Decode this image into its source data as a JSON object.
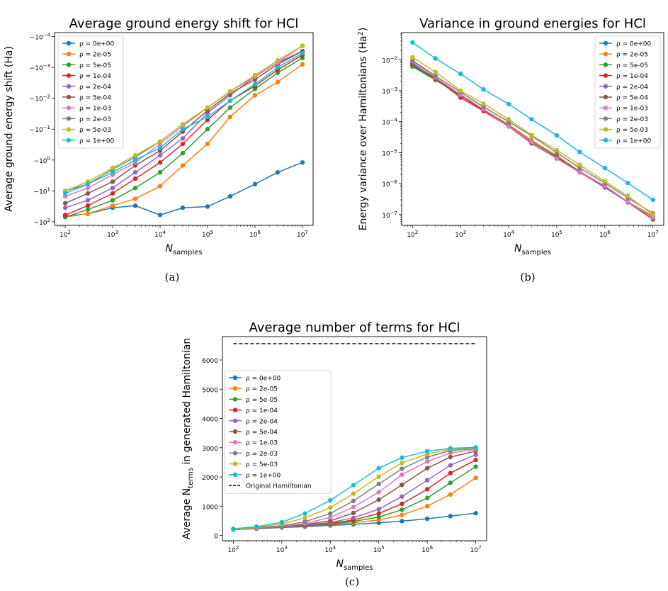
{
  "colors": {
    "p0": "#1f77b4",
    "p1": "#ff7f0e",
    "p2": "#2ca02c",
    "p3": "#d62728",
    "p4": "#9467bd",
    "p5": "#8c564b",
    "p6": "#e377c2",
    "p7": "#7f7f7f",
    "p8": "#bcbd22",
    "p9": "#17becf"
  },
  "chart_data": [
    {
      "type": "line",
      "title": "Average ground energy shift for HCl",
      "xlabel": "N",
      "xlabel_sub": "samples",
      "ylabel": "Average ground energy shift (Ha)",
      "xscale": "log",
      "yscale": "symlog",
      "xlim": [
        100,
        10000000
      ],
      "x_ticks": [
        {
          "v": 100,
          "m": "10",
          "e": "2"
        },
        {
          "v": 1000,
          "m": "10",
          "e": "3"
        },
        {
          "v": 10000,
          "m": "10",
          "e": "4"
        },
        {
          "v": 100000,
          "m": "10",
          "e": "5"
        },
        {
          "v": 1000000,
          "m": "10",
          "e": "6"
        },
        {
          "v": 10000000,
          "m": "10",
          "e": "7"
        }
      ],
      "y_ticks": [
        {
          "v": -0.0001,
          "m": "−10",
          "e": "−4"
        },
        {
          "v": -0.001,
          "m": "−10",
          "e": "−3"
        },
        {
          "v": -0.01,
          "m": "−10",
          "e": "−2"
        },
        {
          "v": -0.1,
          "m": "−10",
          "e": "−1"
        },
        {
          "v": -1,
          "m": "−10",
          "e": "0"
        },
        {
          "v": -10,
          "m": "−10",
          "e": "1"
        },
        {
          "v": -100,
          "m": "−10",
          "e": "2"
        }
      ],
      "legend_position": "upper-left",
      "x": [
        100,
        300,
        1000,
        3000,
        10000,
        30000,
        100000,
        300000,
        1000000,
        3000000,
        10000000
      ],
      "series": [
        {
          "name": "ρ =  0e+00",
          "values": [
            -65,
            -55,
            -35,
            -30,
            -60,
            -35,
            -32,
            -15,
            -6,
            -2.5,
            -1.2
          ]
        },
        {
          "name": "ρ =  2e-05",
          "values": [
            -70,
            -55,
            -30,
            -18,
            -7,
            -1.5,
            -0.3,
            -0.04,
            -0.008,
            -0.003,
            -0.0008
          ]
        },
        {
          "name": "ρ =  5e-05",
          "values": [
            -70,
            -40,
            -20,
            -8,
            -2.5,
            -0.6,
            -0.1,
            -0.02,
            -0.005,
            -0.0015,
            -0.0005
          ]
        },
        {
          "name": "ρ =  1e-04",
          "values": [
            -60,
            -30,
            -12,
            -4,
            -1.2,
            -0.3,
            -0.05,
            -0.012,
            -0.004,
            -0.0012,
            -0.0004
          ]
        },
        {
          "name": "ρ =  2e-04",
          "values": [
            -35,
            -20,
            -8,
            -2.5,
            -0.7,
            -0.2,
            -0.03,
            -0.008,
            -0.002,
            -0.0007,
            -0.0003
          ]
        },
        {
          "name": "ρ =  5e-04",
          "values": [
            -25,
            -12,
            -5,
            -1.5,
            -0.5,
            -0.12,
            -0.025,
            -0.007,
            -0.0025,
            -0.0008,
            -0.0003
          ]
        },
        {
          "name": "ρ =  1e-03",
          "values": [
            -15,
            -8,
            -3,
            -1.2,
            -0.3,
            -0.08,
            -0.02,
            -0.006,
            -0.002,
            -0.0007,
            -0.0002
          ]
        },
        {
          "name": "ρ =  2e-03",
          "values": [
            -10,
            -6,
            -2,
            -0.8,
            -0.25,
            -0.07,
            -0.02,
            -0.006,
            -0.0018,
            -0.0006,
            -0.0002
          ]
        },
        {
          "name": "ρ =  5e-03",
          "values": [
            -10,
            -5,
            -1.8,
            -0.7,
            -0.25,
            -0.07,
            -0.02,
            -0.006,
            -0.0018,
            -0.0006,
            -0.0002
          ]
        },
        {
          "name": "ρ =  1e+00",
          "values": [
            -12,
            -6,
            -2.5,
            -1,
            -0.4,
            -0.1,
            -0.04,
            -0.012,
            -0.0035,
            -0.001,
            -0.00035
          ]
        }
      ]
    },
    {
      "type": "line",
      "title": "Variance in ground energies for HCl",
      "xlabel": "N",
      "xlabel_sub": "samples",
      "ylabel": "Energy variance over Hamiltonians (Ha",
      "ylabel_sup": "2",
      "ylabel_end": ")",
      "xscale": "log",
      "yscale": "log",
      "xlim": [
        100,
        10000000
      ],
      "x_ticks": [
        {
          "v": 100,
          "m": "10",
          "e": "2"
        },
        {
          "v": 1000,
          "m": "10",
          "e": "3"
        },
        {
          "v": 10000,
          "m": "10",
          "e": "4"
        },
        {
          "v": 100000,
          "m": "10",
          "e": "5"
        },
        {
          "v": 1000000,
          "m": "10",
          "e": "6"
        },
        {
          "v": 10000000,
          "m": "10",
          "e": "7"
        }
      ],
      "y_ticks": [
        {
          "v": 1e-07,
          "m": "10",
          "e": "−7"
        },
        {
          "v": 1e-06,
          "m": "10",
          "e": "−6"
        },
        {
          "v": 1e-05,
          "m": "10",
          "e": "−5"
        },
        {
          "v": 0.0001,
          "m": "10",
          "e": "−4"
        },
        {
          "v": 0.001,
          "m": "10",
          "e": "−3"
        },
        {
          "v": 0.01,
          "m": "10",
          "e": "−2"
        }
      ],
      "legend_position": "upper-right",
      "x": [
        100,
        300,
        1000,
        3000,
        10000,
        30000,
        100000,
        300000,
        1000000,
        3000000,
        10000000
      ],
      "series": [
        {
          "name": "ρ =  0e+00",
          "values": [
            0.0065,
            0.0023,
            0.0007,
            0.00023,
            7.5e-05,
            2.3e-05,
            7.5e-06,
            2.5e-06,
            8e-07,
            2.6e-07,
            8.5e-08
          ]
        },
        {
          "name": "ρ =  2e-05",
          "values": [
            0.007,
            0.0025,
            0.00075,
            0.00025,
            8e-05,
            2.5e-05,
            8e-06,
            2.5e-06,
            8e-07,
            2.6e-07,
            9e-08
          ]
        },
        {
          "name": "ρ =  5e-05",
          "values": [
            0.006,
            0.0022,
            0.0007,
            0.00023,
            7.5e-05,
            2.2e-05,
            7.5e-06,
            2.4e-06,
            8e-07,
            2.5e-07,
            8e-08
          ]
        },
        {
          "name": "ρ =  1e-04",
          "values": [
            0.0075,
            0.0025,
            0.0006,
            0.00022,
            7e-05,
            2e-05,
            7e-06,
            2.4e-06,
            8.5e-07,
            2.6e-07,
            8e-08
          ]
        },
        {
          "name": "ρ =  2e-04",
          "values": [
            0.008,
            0.0023,
            0.00075,
            0.00025,
            7.5e-05,
            2.2e-05,
            6.5e-06,
            2.3e-06,
            7.5e-07,
            2.5e-07,
            8e-08
          ]
        },
        {
          "name": "ρ =  5e-04",
          "values": [
            0.007,
            0.0024,
            0.0007,
            0.00024,
            7.5e-05,
            2e-05,
            6.5e-06,
            2.4e-06,
            8e-07,
            2.5e-07,
            7e-08
          ]
        },
        {
          "name": "ρ =  1e-03",
          "values": [
            0.009,
            0.0027,
            0.00075,
            0.00025,
            7e-05,
            2.2e-05,
            6.5e-06,
            2.3e-06,
            8.5e-07,
            2.6e-07,
            8e-08
          ]
        },
        {
          "name": "ρ =  2e-03",
          "values": [
            0.0095,
            0.003,
            0.0009,
            0.0003,
            0.0001,
            3.5e-05,
            1e-05,
            3.2e-06,
            1.05e-06,
            3.5e-07,
            1.1e-07
          ]
        },
        {
          "name": "ρ =  5e-03",
          "values": [
            0.012,
            0.004,
            0.001,
            0.00038,
            0.00012,
            3.7e-05,
            1.2e-05,
            4e-06,
            1.2e-06,
            4e-07,
            1e-07
          ]
        },
        {
          "name": "ρ =  1e+00",
          "values": [
            0.036,
            0.011,
            0.0035,
            0.0011,
            0.00037,
            0.00012,
            3.6e-05,
            1.05e-05,
            3.2e-06,
            1.05e-06,
            3e-07
          ]
        }
      ]
    },
    {
      "type": "line",
      "title": "Average number of terms for HCl",
      "xlabel": "N",
      "xlabel_sub": "samples",
      "ylabel": "Average N",
      "ylabel_sub": "terms",
      "ylabel_end": " in generated Hamiltonian",
      "xscale": "log",
      "yscale": "linear",
      "xlim": [
        100,
        10000000
      ],
      "ylim": [
        0,
        6800
      ],
      "x_ticks": [
        {
          "v": 100,
          "m": "10",
          "e": "2"
        },
        {
          "v": 1000,
          "m": "10",
          "e": "3"
        },
        {
          "v": 10000,
          "m": "10",
          "e": "4"
        },
        {
          "v": 100000,
          "m": "10",
          "e": "5"
        },
        {
          "v": 1000000,
          "m": "10",
          "e": "6"
        },
        {
          "v": 10000000,
          "m": "10",
          "e": "7"
        }
      ],
      "y_ticks": [
        {
          "v": 0,
          "m": "0",
          "e": ""
        },
        {
          "v": 1000,
          "m": "1000",
          "e": ""
        },
        {
          "v": 2000,
          "m": "2000",
          "e": ""
        },
        {
          "v": 3000,
          "m": "3000",
          "e": ""
        },
        {
          "v": 4000,
          "m": "4000",
          "e": ""
        },
        {
          "v": 5000,
          "m": "5000",
          "e": ""
        },
        {
          "v": 6000,
          "m": "6000",
          "e": ""
        }
      ],
      "legend_position": "center-left",
      "reference_line": {
        "name": "Original Hamiltonian",
        "value": 6560
      },
      "x": [
        100,
        300,
        1000,
        3000,
        10000,
        30000,
        100000,
        300000,
        1000000,
        3000000,
        10000000
      ],
      "series": [
        {
          "name": "ρ =  0e+00",
          "values": [
            200,
            230,
            270,
            300,
            340,
            380,
            430,
            490,
            570,
            660,
            760
          ]
        },
        {
          "name": "ρ =  2e-05",
          "values": [
            200,
            240,
            280,
            320,
            370,
            430,
            530,
            700,
            1000,
            1400,
            1970
          ]
        },
        {
          "name": "ρ =  5e-05",
          "values": [
            200,
            240,
            280,
            330,
            390,
            480,
            630,
            880,
            1280,
            1800,
            2350
          ]
        },
        {
          "name": "ρ =  1e-04",
          "values": [
            200,
            240,
            290,
            340,
            410,
            530,
            750,
            1080,
            1580,
            2130,
            2580
          ]
        },
        {
          "name": "ρ =  2e-04",
          "values": [
            200,
            240,
            290,
            350,
            440,
            600,
            900,
            1330,
            1890,
            2400,
            2760
          ]
        },
        {
          "name": "ρ =  5e-04",
          "values": [
            200,
            250,
            300,
            370,
            500,
            770,
            1220,
            1730,
            2300,
            2680,
            2880
          ]
        },
        {
          "name": "ρ =  1e-03",
          "values": [
            200,
            250,
            310,
            410,
            620,
            970,
            1480,
            2080,
            2530,
            2820,
            2940
          ]
        },
        {
          "name": "ρ =  2e-03",
          "values": [
            200,
            250,
            330,
            470,
            750,
            1180,
            1760,
            2280,
            2680,
            2900,
            2970
          ]
        },
        {
          "name": "ρ =  5e-03",
          "values": [
            210,
            270,
            390,
            600,
            950,
            1430,
            2010,
            2480,
            2790,
            2950,
            2990
          ]
        },
        {
          "name": "ρ =  1e+00",
          "values": [
            230,
            300,
            450,
            750,
            1200,
            1720,
            2300,
            2660,
            2880,
            2980,
            3010
          ]
        }
      ]
    }
  ],
  "captions": [
    "(a)",
    "(b)",
    "(c)"
  ]
}
